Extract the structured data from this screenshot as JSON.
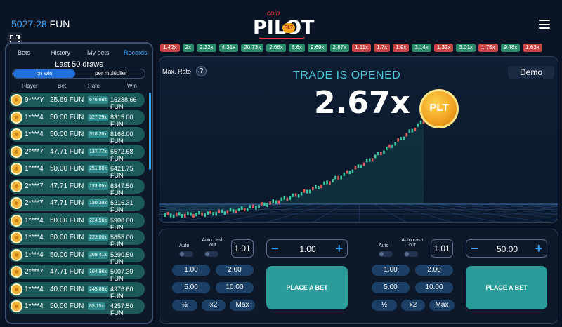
{
  "header": {
    "balance_amount": "5027.28",
    "balance_currency": "FUN",
    "logo_small": "coin",
    "logo_big": "PILOT",
    "logo_badge": "PLT"
  },
  "icons": {
    "fullscreen": "fullscreen-icon",
    "menu": "hamburger-menu-icon",
    "help": "question-icon",
    "coin": "plt-coin-icon"
  },
  "colors": {
    "accent": "#3aa6ff",
    "win_chip": "#2a8a6a",
    "loss_chip": "#c94545",
    "row_bg": "#1c5a5a",
    "place_bet": "#2a9d9a",
    "candle_up": "#3bc9a0",
    "candle_down": "#e05a5a"
  },
  "history": [
    {
      "v": "1.42x",
      "c": "red"
    },
    {
      "v": "2x",
      "c": "green"
    },
    {
      "v": "2.32x",
      "c": "green"
    },
    {
      "v": "4.31x",
      "c": "green"
    },
    {
      "v": "20.73x",
      "c": "green"
    },
    {
      "v": "2.06x",
      "c": "green"
    },
    {
      "v": "8.6x",
      "c": "green"
    },
    {
      "v": "9.69x",
      "c": "green"
    },
    {
      "v": "2.87x",
      "c": "green"
    },
    {
      "v": "1.11x",
      "c": "red"
    },
    {
      "v": "1.7x",
      "c": "red"
    },
    {
      "v": "1.9x",
      "c": "red"
    },
    {
      "v": "3.14x",
      "c": "green"
    },
    {
      "v": "1.32x",
      "c": "red"
    },
    {
      "v": "3.01x",
      "c": "green"
    },
    {
      "v": "1.75x",
      "c": "red"
    },
    {
      "v": "9.48x",
      "c": "green"
    },
    {
      "v": "1.63x",
      "c": "red"
    }
  ],
  "sidebar": {
    "tabs": [
      "Bets",
      "History",
      "My bets",
      "Records"
    ],
    "active_tab": "Records",
    "title": "Last 50 draws",
    "toggle_on": "on win",
    "toggle_off": "per multiplier",
    "columns": [
      "Player",
      "Bet",
      "Rate",
      "Win"
    ],
    "rows": [
      {
        "player": "9****Y",
        "bet": "25.69 FUN",
        "rate": "676.08x",
        "win": "16288.66 FUN"
      },
      {
        "player": "1****4",
        "bet": "50.00 FUN",
        "rate": "327.29x",
        "win": "8315.00 FUN"
      },
      {
        "player": "1****4",
        "bet": "50.00 FUN",
        "rate": "318.28x",
        "win": "8166.00 FUN"
      },
      {
        "player": "2****7",
        "bet": "47.71 FUN",
        "rate": "137.77x",
        "win": "6572.68 FUN"
      },
      {
        "player": "1****4",
        "bet": "50.00 FUN",
        "rate": "251.08x",
        "win": "6421.75 FUN"
      },
      {
        "player": "2****7",
        "bet": "47.71 FUN",
        "rate": "133.05x",
        "win": "6347.50 FUN"
      },
      {
        "player": "2****7",
        "bet": "47.71 FUN",
        "rate": "130.30x",
        "win": "6216.31 FUN"
      },
      {
        "player": "1****4",
        "bet": "50.00 FUN",
        "rate": "224.56x",
        "win": "5908.00 FUN"
      },
      {
        "player": "1****4",
        "bet": "50.00 FUN",
        "rate": "223.00x",
        "win": "5855.00 FUN"
      },
      {
        "player": "1****4",
        "bet": "50.00 FUN",
        "rate": "209.41x",
        "win": "5290.50 FUN"
      },
      {
        "player": "2****7",
        "bet": "47.71 FUN",
        "rate": "104.96x",
        "win": "5007.39 FUN"
      },
      {
        "player": "1****4",
        "bet": "40.00 FUN",
        "rate": "245.88x",
        "win": "4976.60 FUN"
      },
      {
        "player": "1****4",
        "bet": "50.00 FUN",
        "rate": "85.15x",
        "win": "4257.50 FUN"
      }
    ]
  },
  "game": {
    "max_rate_label": "Max. Rate",
    "help_glyph": "?",
    "status": "TRADE IS OPENED",
    "multiplier": "2.67x",
    "mode": "Demo",
    "coin_label": "PLT"
  },
  "bet_panels": [
    {
      "auto": "Auto",
      "auto_cashout": "Auto cash out",
      "rate": "1.01",
      "minus": "−",
      "plus": "+",
      "amount": "1.00",
      "quick": [
        "1.00",
        "2.00",
        "5.00",
        "10.00"
      ],
      "half": "½",
      "double": "x2",
      "max": "Max",
      "place": "PLACE A BET"
    },
    {
      "auto": "Auto",
      "auto_cashout": "Auto cash out",
      "rate": "1.01",
      "minus": "−",
      "plus": "+",
      "amount": "50.00",
      "quick": [
        "1.00",
        "2.00",
        "5.00",
        "10.00"
      ],
      "half": "½",
      "double": "x2",
      "max": "Max",
      "place": "PLACE A BET"
    }
  ]
}
